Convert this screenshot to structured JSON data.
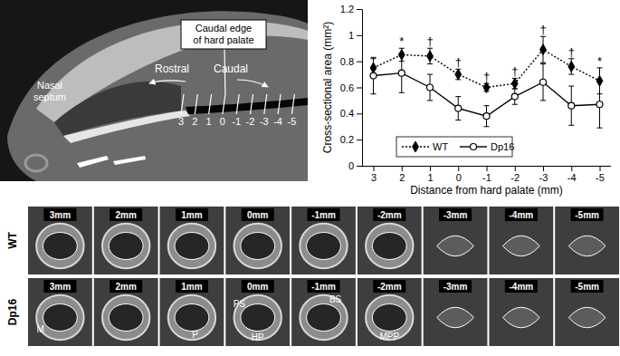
{
  "chart_data": {
    "type": "line",
    "categories": [
      "3",
      "2",
      "1",
      "0",
      "-1",
      "-2",
      "-3",
      "-4",
      "-5"
    ],
    "series": [
      {
        "name": "WT",
        "color": "#000000",
        "line_style": "dotted",
        "marker": "diamond",
        "values": [
          0.75,
          0.85,
          0.84,
          0.7,
          0.6,
          0.63,
          0.89,
          0.76,
          0.65
        ],
        "errors": [
          0.07,
          0.05,
          0.06,
          0.04,
          0.03,
          0.04,
          0.1,
          0.06,
          0.1
        ]
      },
      {
        "name": "Dp16",
        "color": "#000000",
        "line_style": "solid",
        "marker": "open_circle",
        "values": [
          0.69,
          0.71,
          0.6,
          0.44,
          0.38,
          0.53,
          0.64,
          0.46,
          0.47
        ],
        "errors": [
          0.14,
          0.15,
          0.1,
          0.09,
          0.08,
          0.06,
          0.14,
          0.15,
          0.18
        ]
      }
    ],
    "ylim": [
      0,
      1.2
    ],
    "yticks": [
      0,
      0.2,
      0.4,
      0.6,
      0.8,
      1,
      1.2
    ],
    "xlabel": "Distance from hard palate (mm)",
    "ylabel": "Cross-sectional area (mm²)",
    "legend": "lower left",
    "annotations": [
      {
        "x": "2",
        "text": "*"
      },
      {
        "x": "1",
        "text": "†"
      },
      {
        "x": "0",
        "text": "†"
      },
      {
        "x": "-1",
        "text": "†"
      },
      {
        "x": "-2",
        "text": "†"
      },
      {
        "x": "-3",
        "text": "†"
      },
      {
        "x": "-4",
        "text": "†"
      },
      {
        "x": "-5",
        "text": "*"
      }
    ]
  },
  "sagittal_image": {
    "box_label": [
      "Caudal edge",
      "of hard palate"
    ],
    "rostral": "Rostral",
    "caudal": "Caudal",
    "septum": [
      "Nasal",
      "septum"
    ],
    "distance_marks": [
      "3",
      "2",
      "1",
      "0",
      "-1",
      "-2",
      "-3",
      "-4",
      "-5"
    ]
  },
  "section_images": {
    "rows": [
      "WT",
      "Dp16"
    ],
    "columns": [
      "3mm",
      "2mm",
      "1mm",
      "0mm",
      "-1mm",
      "-2mm",
      "-3mm",
      "-4mm",
      "-5mm"
    ],
    "structure_labels": [
      {
        "row": "Dp16",
        "column": "3mm",
        "text": "M"
      },
      {
        "row": "Dp16",
        "column": "1mm",
        "text": "P"
      },
      {
        "row": "Dp16",
        "column": "0mm",
        "text": "PS"
      },
      {
        "row": "Dp16",
        "column": "0mm",
        "text": "HP"
      },
      {
        "row": "Dp16",
        "column": "-1mm",
        "text": "BS"
      },
      {
        "row": "Dp16",
        "column": "-2mm",
        "text": "MPP"
      }
    ]
  }
}
